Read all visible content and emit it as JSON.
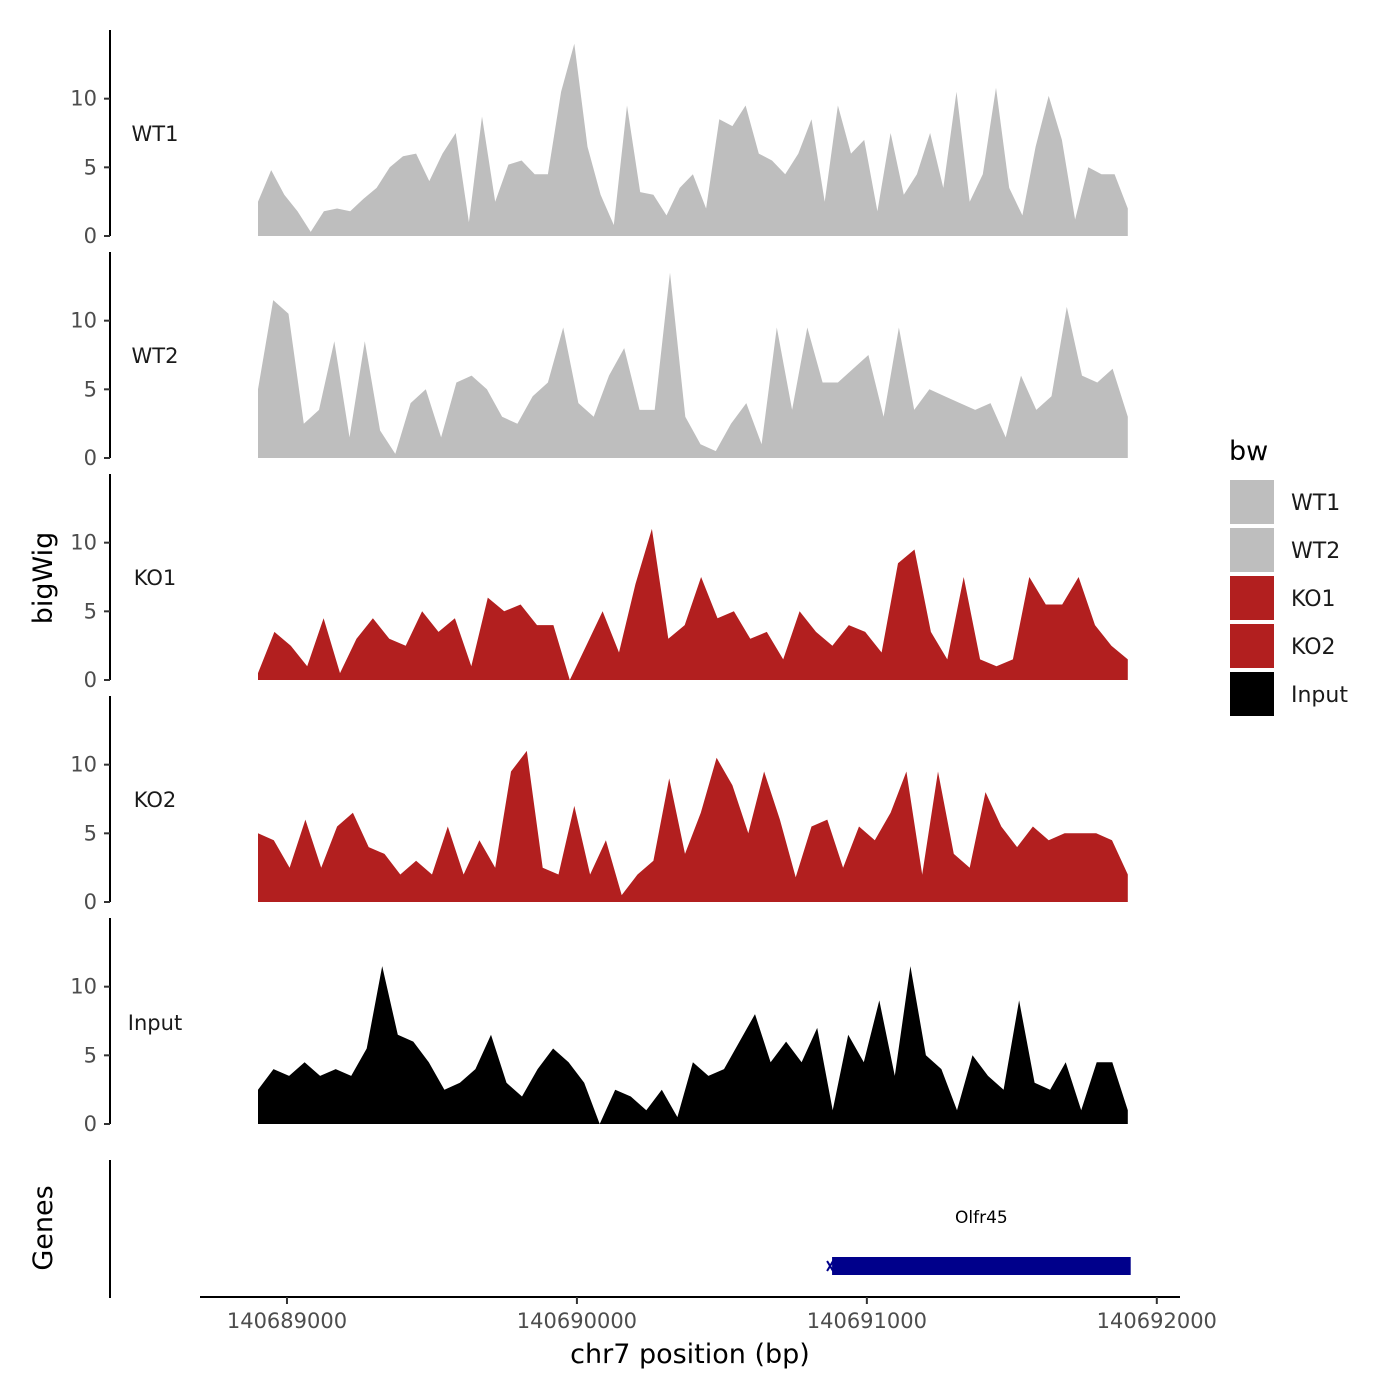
{
  "chart_data": {
    "type": "area",
    "xlabel": "chr7 position (bp)",
    "ylabel": "bigWig",
    "xlim": [
      140688700,
      140692080
    ],
    "x_ticks": [
      "140689000",
      "140690000",
      "140691000",
      "140692000"
    ],
    "x_tick_values": [
      140689000,
      140690000,
      140691000,
      140692000
    ],
    "ylim": [
      0,
      15
    ],
    "y_ticks": [
      "0",
      "5",
      "10"
    ],
    "y_tick_values": [
      0,
      5,
      10
    ],
    "x_start": 140688900,
    "x_step": 50,
    "series": [
      {
        "name": "WT1",
        "color": "#bebebe",
        "values": [
          2.5,
          4.8,
          3.0,
          1.8,
          0.3,
          1.8,
          2.0,
          1.8,
          2.7,
          3.5,
          5.0,
          5.8,
          6.0,
          4.0,
          6.0,
          7.5,
          1.0,
          8.7,
          2.5,
          5.2,
          5.5,
          4.5,
          4.5,
          10.5,
          14.0,
          6.5,
          3.0,
          0.8,
          9.5,
          3.2,
          3.0,
          1.5,
          3.5,
          4.5,
          2.0,
          8.5,
          8.0,
          9.5,
          6.0,
          5.5,
          4.5,
          6.0,
          8.5,
          2.5,
          9.5,
          6.0,
          7.0,
          1.8,
          7.5,
          3.0,
          4.5,
          7.5,
          3.5,
          10.5,
          2.5,
          4.5,
          10.8,
          3.5,
          1.5,
          6.5,
          10.2,
          7.0,
          1.2,
          5.0,
          4.5,
          4.5,
          2.0
        ]
      },
      {
        "name": "WT2",
        "color": "#bebebe",
        "values": [
          5.0,
          11.5,
          10.5,
          2.5,
          3.5,
          8.5,
          1.5,
          8.5,
          2.0,
          0.3,
          4.0,
          5.0,
          1.5,
          5.5,
          6.0,
          5.0,
          3.0,
          2.5,
          4.5,
          5.5,
          9.5,
          4.0,
          3.0,
          6.0,
          8.0,
          3.5,
          3.5,
          13.5,
          3.0,
          1.0,
          0.5,
          2.5,
          4.0,
          1.0,
          9.5,
          3.5,
          9.5,
          5.5,
          5.5,
          6.5,
          7.5,
          3.0,
          9.5,
          3.5,
          5.0,
          4.5,
          4.0,
          3.5,
          4.0,
          1.5,
          6.0,
          3.5,
          4.5,
          11.0,
          6.0,
          5.5,
          6.5,
          3.0
        ]
      },
      {
        "name": "KO1",
        "color": "#b21f1f",
        "values": [
          0.5,
          3.5,
          2.5,
          1.0,
          4.5,
          0.5,
          3.0,
          4.5,
          3.0,
          2.5,
          5.0,
          3.5,
          4.5,
          1.0,
          6.0,
          5.0,
          5.5,
          4.0,
          4.0,
          0.0,
          2.5,
          5.0,
          2.0,
          7.0,
          11.0,
          3.0,
          4.0,
          7.5,
          4.5,
          5.0,
          3.0,
          3.5,
          1.5,
          5.0,
          3.5,
          2.5,
          4.0,
          3.5,
          2.0,
          8.5,
          9.5,
          3.5,
          1.5,
          7.5,
          1.5,
          1.0,
          1.5,
          7.5,
          5.5,
          5.5,
          7.5,
          4.0,
          2.5,
          1.5
        ]
      },
      {
        "name": "KO2",
        "color": "#b21f1f",
        "values": [
          5.0,
          4.5,
          2.5,
          6.0,
          2.5,
          5.5,
          6.5,
          4.0,
          3.5,
          2.0,
          3.0,
          2.0,
          5.5,
          2.0,
          4.5,
          2.5,
          9.5,
          11.0,
          2.5,
          2.0,
          7.0,
          2.0,
          4.5,
          0.5,
          2.0,
          3.0,
          9.0,
          3.5,
          6.5,
          10.5,
          8.5,
          5.0,
          9.5,
          6.0,
          1.8,
          5.5,
          6.0,
          2.5,
          5.5,
          4.5,
          6.5,
          9.5,
          2.0,
          9.5,
          3.5,
          2.5,
          8.0,
          5.5,
          4.0,
          5.5,
          4.5,
          5.0,
          5.0,
          5.0,
          4.5,
          2.0
        ]
      },
      {
        "name": "Input",
        "color": "#000000",
        "values": [
          2.5,
          4.0,
          3.5,
          4.5,
          3.5,
          4.0,
          3.5,
          5.5,
          11.5,
          6.5,
          6.0,
          4.5,
          2.5,
          3.0,
          4.0,
          6.5,
          3.0,
          2.0,
          4.0,
          5.5,
          4.5,
          3.0,
          0.0,
          2.5,
          2.0,
          1.0,
          2.5,
          0.5,
          4.5,
          3.5,
          4.0,
          6.0,
          8.0,
          4.5,
          6.0,
          4.5,
          7.0,
          1.0,
          6.5,
          4.5,
          9.0,
          3.5,
          11.5,
          5.0,
          4.0,
          1.0,
          5.0,
          3.5,
          2.5,
          9.0,
          3.0,
          2.5,
          4.5,
          1.0,
          4.5,
          4.5,
          1.0
        ]
      }
    ],
    "genes_track": {
      "label": "Genes",
      "genes": [
        {
          "name": "Olfr45",
          "start": 140690880,
          "end": 140691910,
          "strand": "-",
          "color": "#00008b"
        }
      ]
    },
    "legend": {
      "title": "bw",
      "position": "right",
      "entries": [
        {
          "label": "WT1",
          "color": "#bebebe"
        },
        {
          "label": "WT2",
          "color": "#bebebe"
        },
        {
          "label": "KO1",
          "color": "#b21f1f"
        },
        {
          "label": "KO2",
          "color": "#b21f1f"
        },
        {
          "label": "Input",
          "color": "#000000"
        }
      ]
    }
  }
}
